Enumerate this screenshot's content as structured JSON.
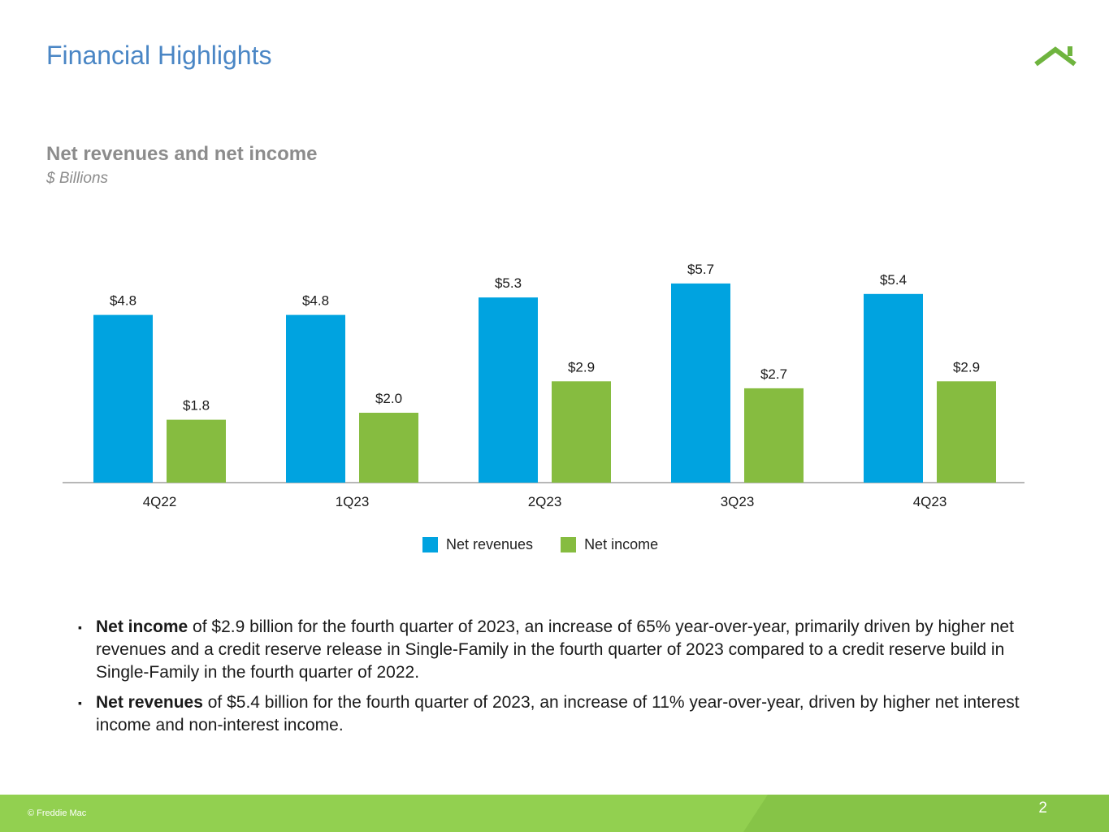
{
  "header": {
    "title": "Financial Highlights"
  },
  "chart_data": {
    "type": "bar",
    "title": "Net revenues and net income",
    "subtitle": "$ Billions",
    "categories": [
      "4Q22",
      "1Q23",
      "2Q23",
      "3Q23",
      "4Q23"
    ],
    "series": [
      {
        "name": "Net revenues",
        "color": "#00a3e0",
        "values": [
          4.8,
          4.8,
          5.3,
          5.7,
          5.4
        ],
        "labels": [
          "$4.8",
          "$4.8",
          "$5.3",
          "$5.7",
          "$5.4"
        ]
      },
      {
        "name": "Net income",
        "color": "#86bc40",
        "values": [
          1.8,
          2.0,
          2.9,
          2.7,
          2.9
        ],
        "labels": [
          "$1.8",
          "$2.0",
          "$2.9",
          "$2.7",
          "$2.9"
        ]
      }
    ],
    "xlabel": "",
    "ylabel": "",
    "ylim": [
      0,
      6
    ],
    "grid": false,
    "legend": "bottom"
  },
  "bullets": [
    {
      "bold": "Net income",
      "text": " of $2.9 billion for the fourth quarter of 2023, an increase of 65% year-over-year, primarily driven by higher net revenues and a credit reserve release in Single-Family in the fourth quarter of 2023 compared to a credit reserve build in Single-Family in the fourth quarter of 2022."
    },
    {
      "bold": "Net revenues",
      "text": " of $5.4 billion for the fourth quarter of 2023, an increase of 11% year-over-year, driven by higher net interest income and non-interest income."
    }
  ],
  "bullet_marker": "▪",
  "footer": {
    "copyright": "© Freddie Mac",
    "page_number": "2"
  },
  "colors": {
    "title": "#4a86c5",
    "footer_green": "#92d050",
    "footer_green_dark": "#86c447",
    "logo": "#6fb43f"
  }
}
